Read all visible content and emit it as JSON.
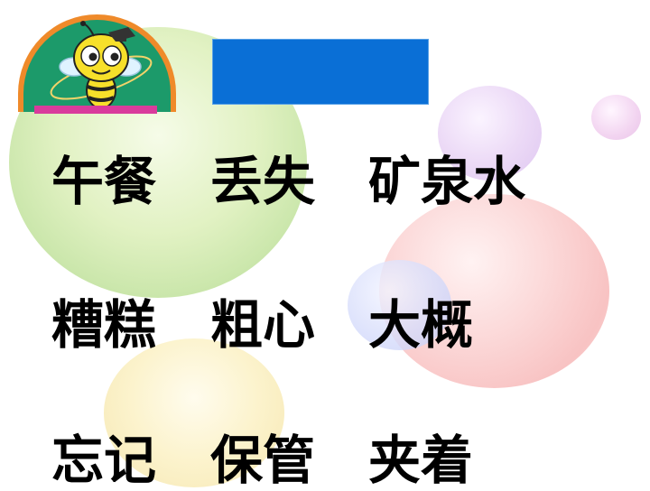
{
  "logo": {
    "icon": "bee-mascot-icon"
  },
  "title_banner": {
    "text": "",
    "color": "#0a6fd6"
  },
  "words": [
    [
      "午餐",
      "丢失",
      "矿泉水"
    ],
    [
      "糟糕",
      "粗心",
      "大概"
    ],
    [
      "忘记",
      "保管",
      "夹着"
    ]
  ],
  "colors": {
    "logo_ring": "#ef8a2a",
    "logo_bg": "#1c9a6a",
    "logo_bar": "#d93b9c",
    "text": "#000000"
  }
}
